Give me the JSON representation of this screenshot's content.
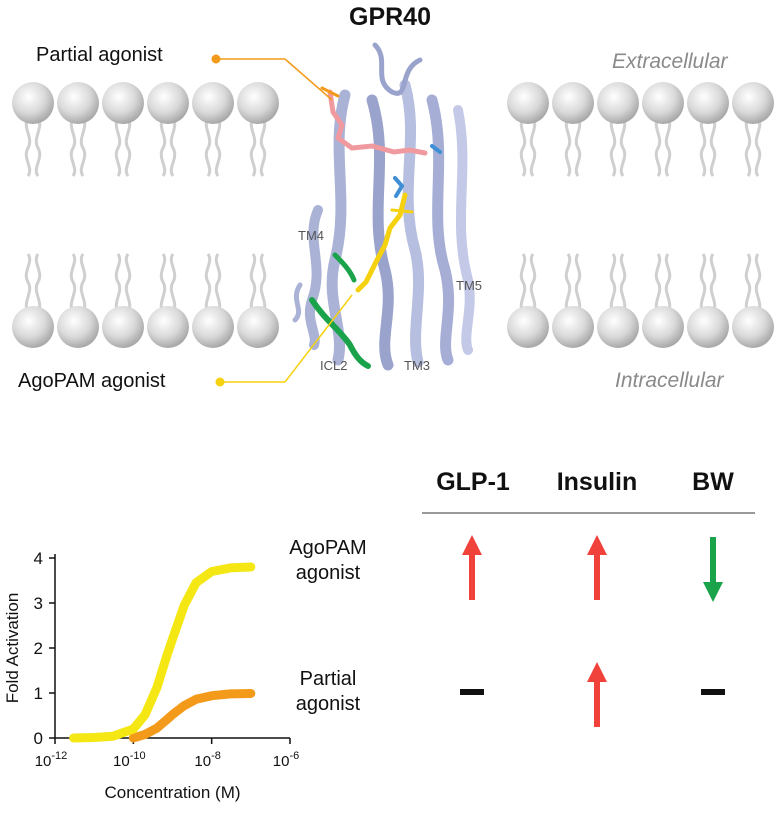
{
  "figure": {
    "title": "GPR40",
    "callouts": {
      "partial": "Partial agonist",
      "agopam": "AgoPAM agonist"
    },
    "regions": {
      "extracellular": "Extracellular",
      "intracellular": "Intracellular"
    },
    "helix_labels": [
      "TM4",
      "TM5",
      "ICL2",
      "TM3"
    ]
  },
  "effects_table": {
    "columns": [
      "GLP-1",
      "Insulin",
      "BW"
    ],
    "rows": [
      {
        "label": [
          "AgoPAM",
          "agonist"
        ],
        "effects": [
          "up",
          "up",
          "down"
        ]
      },
      {
        "label": [
          "Partial",
          "agonist"
        ],
        "effects": [
          "none",
          "up",
          "none"
        ]
      }
    ],
    "colors": {
      "up": "#f0413a",
      "down": "#1aa34a",
      "none": "#111111"
    }
  },
  "chart_data": {
    "type": "line",
    "xlabel": "Concentration (M)",
    "ylabel": "Fold Activation",
    "x_scale": "log",
    "xlim": [
      1e-12,
      1e-06
    ],
    "ylim": [
      0,
      4
    ],
    "x_ticks": [
      {
        "base": "10",
        "exp": "-12",
        "value": -12
      },
      {
        "base": "10",
        "exp": "-10",
        "value": -10
      },
      {
        "base": "10",
        "exp": "-8",
        "value": -8
      },
      {
        "base": "10",
        "exp": "-6",
        "value": -6
      }
    ],
    "y_ticks": [
      "0",
      "1",
      "2",
      "3",
      "4"
    ],
    "series": [
      {
        "key": "agopam",
        "color": "#f5e714",
        "x": [
          3e-12,
          1e-11,
          3e-11,
          1e-10,
          2e-10,
          4e-10,
          7e-10,
          1e-09,
          2e-09,
          4e-09,
          1e-08,
          3e-08,
          1e-07
        ],
        "y": [
          0.0,
          0.01,
          0.04,
          0.2,
          0.52,
          1.12,
          1.8,
          2.2,
          2.95,
          3.45,
          3.7,
          3.78,
          3.8
        ]
      },
      {
        "key": "partial",
        "color": "#f39a1a",
        "x": [
          1e-10,
          2e-10,
          4e-10,
          7e-10,
          1e-09,
          2e-09,
          4e-09,
          1e-08,
          3e-08,
          1e-07
        ],
        "y": [
          0.0,
          0.08,
          0.22,
          0.4,
          0.52,
          0.72,
          0.86,
          0.94,
          0.98,
          0.99
        ]
      }
    ]
  }
}
